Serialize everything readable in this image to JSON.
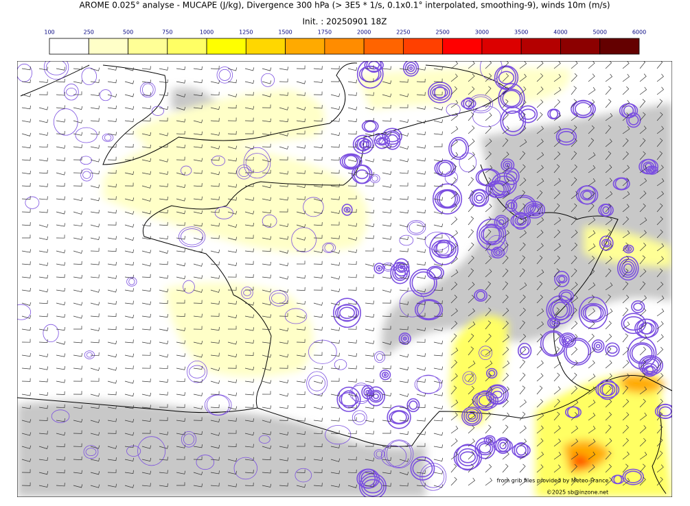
{
  "header": {
    "title": "AROME 0.025° analyse - MUCAPE (J/kg), Divergence 300 hPa (> 3E5 * 1/s, 0.1x0.1° interpolated, smoothing-9), winds 10m (m/s)",
    "init": "Init. : 20250901 18Z"
  },
  "colorbar": {
    "levels": [
      100,
      250,
      500,
      750,
      1000,
      1250,
      1500,
      1750,
      2000,
      2250,
      2500,
      3000,
      3500,
      4000,
      5000,
      6000
    ],
    "colors": [
      "#ffffff",
      "#ffffc8",
      "#ffff96",
      "#ffff64",
      "#ffff00",
      "#ffd700",
      "#ffaa00",
      "#ff8c00",
      "#ff6400",
      "#ff4000",
      "#ff0000",
      "#dc0000",
      "#b40000",
      "#8c0000",
      "#640000"
    ]
  },
  "credits": {
    "source": "from grib files provided by Meteo-France",
    "copyright": "©2025 sb@inzone.net"
  }
}
